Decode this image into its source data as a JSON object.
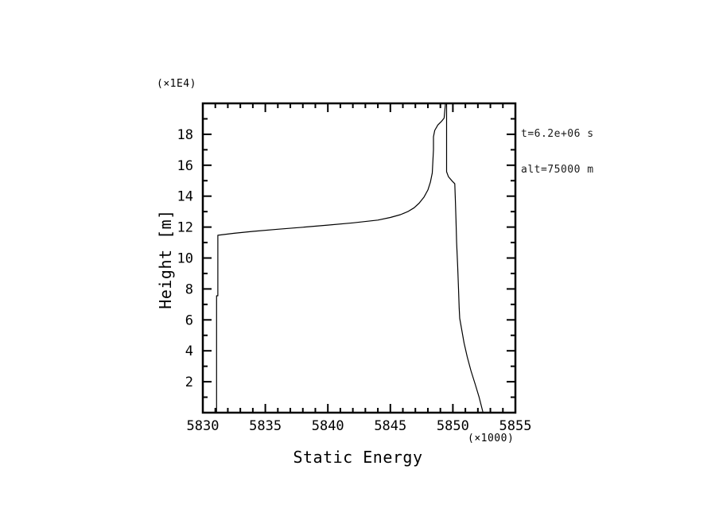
{
  "page": {
    "background": "#ffffff",
    "foreground": "#000000"
  },
  "annotation": {
    "line1": "t=6.2e+06 s",
    "line2": "alt=75000 m"
  },
  "chart_data": {
    "type": "line",
    "title": "",
    "xlabel": "Static Energy",
    "ylabel": "Height [m]",
    "x_multiplier": "(×1000)",
    "y_multiplier": "(×1E4)",
    "xlim": [
      5830,
      5855
    ],
    "ylim": [
      0,
      20
    ],
    "grid": false,
    "legend": "none",
    "line_color": "#000000",
    "frame_color": "#000000",
    "x_major_ticks": [
      5830,
      5835,
      5840,
      5845,
      5850,
      5855
    ],
    "x_minor_step": 1,
    "y_major_ticks": [
      2,
      4,
      6,
      8,
      10,
      12,
      14,
      16,
      18
    ],
    "y_minor_ticks": [
      1,
      3,
      5,
      7,
      9,
      11,
      13,
      15,
      17,
      19
    ],
    "series": [
      {
        "name": "static-energy-profile-left",
        "points": [
          [
            5831.1,
            0.05
          ],
          [
            5831.1,
            7.56
          ],
          [
            5831.2,
            7.56
          ],
          [
            5831.2,
            11.47
          ],
          [
            5832.5,
            11.6
          ],
          [
            5834.0,
            11.72
          ],
          [
            5836.0,
            11.86
          ],
          [
            5838.0,
            11.99
          ],
          [
            5840.0,
            12.13
          ],
          [
            5842.0,
            12.27
          ],
          [
            5844.0,
            12.45
          ],
          [
            5845.0,
            12.62
          ],
          [
            5845.8,
            12.8
          ],
          [
            5846.4,
            13.0
          ],
          [
            5846.9,
            13.25
          ],
          [
            5847.3,
            13.55
          ],
          [
            5847.7,
            13.95
          ],
          [
            5848.0,
            14.4
          ],
          [
            5848.2,
            14.9
          ],
          [
            5848.35,
            15.5
          ],
          [
            5848.4,
            16.2
          ],
          [
            5848.45,
            17.0
          ],
          [
            5848.45,
            17.84
          ],
          [
            5848.55,
            18.25
          ],
          [
            5848.8,
            18.6
          ],
          [
            5849.1,
            18.85
          ],
          [
            5849.3,
            19.05
          ],
          [
            5849.35,
            19.5
          ],
          [
            5849.4,
            19.95
          ]
        ]
      },
      {
        "name": "static-energy-profile-right",
        "points": [
          [
            5849.5,
            19.95
          ],
          [
            5849.5,
            15.58
          ],
          [
            5849.65,
            15.25
          ],
          [
            5849.95,
            14.97
          ],
          [
            5850.15,
            14.8
          ],
          [
            5850.2,
            13.8
          ],
          [
            5850.25,
            12.5
          ],
          [
            5850.3,
            11.0
          ],
          [
            5850.38,
            9.5
          ],
          [
            5850.45,
            8.0
          ],
          [
            5850.5,
            6.8
          ],
          [
            5850.55,
            6.1
          ],
          [
            5850.7,
            5.4
          ],
          [
            5850.9,
            4.5
          ],
          [
            5851.15,
            3.6
          ],
          [
            5851.45,
            2.7
          ],
          [
            5851.8,
            1.8
          ],
          [
            5852.1,
            1.0
          ],
          [
            5852.4,
            0.05
          ]
        ]
      }
    ]
  }
}
